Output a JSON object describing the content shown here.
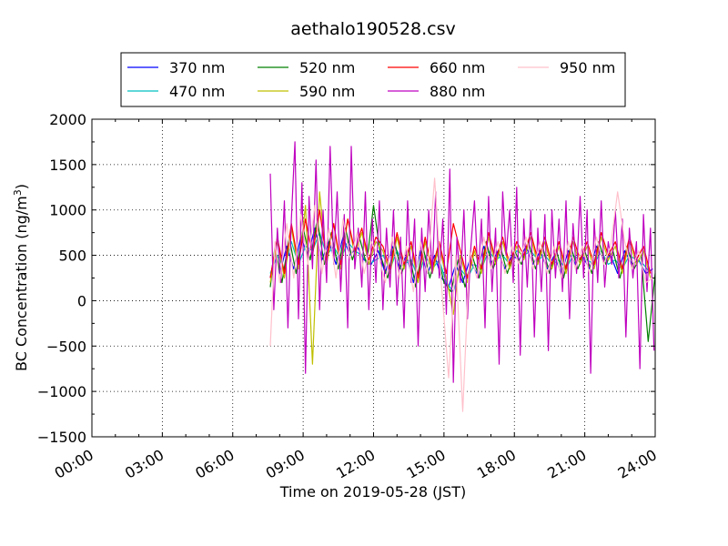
{
  "chart_data": {
    "type": "line",
    "title": "aethalo190528.csv",
    "xlabel": "Time on 2019-05-28 (JST)",
    "ylabel_main": "BC Concentration (ng/m",
    "ylabel_sup": "3",
    "ylabel_end": ")",
    "ylim": [
      -1500,
      2000
    ],
    "yticks": [
      -1500,
      -1000,
      -500,
      0,
      500,
      1000,
      1500,
      2000
    ],
    "ytick_labels": [
      "−1500",
      "−1000",
      "−500",
      "0",
      "500",
      "1000",
      "1500",
      "2000"
    ],
    "xlim_hours": [
      0,
      24
    ],
    "xticks_hours": [
      0,
      3,
      6,
      9,
      12,
      15,
      18,
      21,
      24
    ],
    "xtick_labels": [
      "00:00",
      "03:00",
      "06:00",
      "09:00",
      "12:00",
      "15:00",
      "18:00",
      "21:00",
      "24:00"
    ],
    "grid": true,
    "legend_position": "top",
    "series": [
      {
        "name": "370 nm",
        "color": "#0000ff",
        "x_hours": [
          7.6,
          7.8,
          8.0,
          8.3,
          8.6,
          8.9,
          9.2,
          9.5,
          9.8,
          10.1,
          10.4,
          10.7,
          11.0,
          11.3,
          11.6,
          11.9,
          12.2,
          12.5,
          12.8,
          13.1,
          13.4,
          13.7,
          14.0,
          14.3,
          14.6,
          14.9,
          15.2,
          15.5,
          15.8,
          16.1,
          16.4,
          16.7,
          17.0,
          17.3,
          17.6,
          17.9,
          18.2,
          18.5,
          18.8,
          19.1,
          19.4,
          19.7,
          20.0,
          20.3,
          20.6,
          20.9,
          21.2,
          21.5,
          21.8,
          22.1,
          22.4,
          22.7,
          23.0,
          23.3,
          23.6,
          23.9
        ],
        "values": [
          250,
          550,
          300,
          600,
          350,
          700,
          500,
          800,
          450,
          650,
          400,
          700,
          500,
          600,
          450,
          400,
          550,
          300,
          600,
          350,
          500,
          200,
          550,
          300,
          500,
          250,
          150,
          400,
          200,
          450,
          300,
          600,
          400,
          550,
          350,
          500,
          450,
          600,
          400,
          550,
          350,
          500,
          300,
          550,
          400,
          500,
          350,
          600,
          450,
          500,
          300,
          550,
          400,
          450,
          300,
          350
        ]
      },
      {
        "name": "470 nm",
        "color": "#00bfbf",
        "x_hours": [
          7.6,
          7.9,
          8.2,
          8.5,
          8.8,
          9.1,
          9.4,
          9.7,
          10.0,
          10.3,
          10.6,
          10.9,
          11.2,
          11.5,
          11.8,
          12.1,
          12.4,
          12.7,
          13.0,
          13.3,
          13.6,
          13.9,
          14.2,
          14.5,
          14.8,
          15.1,
          15.4,
          15.7,
          16.0,
          16.3,
          16.6,
          16.9,
          17.2,
          17.5,
          17.8,
          18.1,
          18.4,
          18.7,
          19.0,
          19.3,
          19.6,
          19.9,
          20.2,
          20.5,
          20.8,
          21.1,
          21.4,
          21.7,
          22.0,
          22.3,
          22.6,
          22.9,
          23.2,
          23.5,
          23.8
        ],
        "values": [
          300,
          500,
          350,
          650,
          400,
          600,
          550,
          750,
          500,
          600,
          450,
          650,
          550,
          500,
          400,
          450,
          500,
          350,
          550,
          400,
          450,
          250,
          500,
          350,
          450,
          200,
          100,
          350,
          250,
          400,
          350,
          550,
          450,
          500,
          400,
          550,
          500,
          550,
          450,
          500,
          400,
          450,
          350,
          500,
          450,
          450,
          400,
          550,
          400,
          450,
          350,
          500,
          450,
          400,
          300
        ]
      },
      {
        "name": "520 nm",
        "color": "#008000",
        "x_hours": [
          7.6,
          7.8,
          8.1,
          8.4,
          8.7,
          9.0,
          9.3,
          9.6,
          9.9,
          10.2,
          10.5,
          10.8,
          11.1,
          11.4,
          11.7,
          12.0,
          12.3,
          12.6,
          12.9,
          13.2,
          13.5,
          13.8,
          14.1,
          14.4,
          14.7,
          15.0,
          15.3,
          15.6,
          15.9,
          16.2,
          16.5,
          16.8,
          17.1,
          17.4,
          17.7,
          18.0,
          18.3,
          18.6,
          18.9,
          19.2,
          19.5,
          19.8,
          20.1,
          20.4,
          20.7,
          21.0,
          21.3,
          21.6,
          21.9,
          22.2,
          22.5,
          22.8,
          23.1,
          23.4,
          23.7,
          24.0
        ],
        "values": [
          150,
          600,
          200,
          700,
          300,
          800,
          450,
          900,
          400,
          750,
          350,
          800,
          450,
          700,
          400,
          1050,
          500,
          250,
          650,
          300,
          550,
          150,
          600,
          250,
          550,
          200,
          100,
          450,
          150,
          500,
          250,
          650,
          350,
          600,
          300,
          550,
          400,
          650,
          350,
          600,
          300,
          550,
          250,
          600,
          350,
          550,
          300,
          650,
          400,
          550,
          250,
          600,
          350,
          500,
          -450,
          300
        ]
      },
      {
        "name": "590 nm",
        "color": "#bfbf00",
        "x_hours": [
          7.6,
          7.9,
          8.2,
          8.5,
          8.8,
          9.1,
          9.4,
          9.7,
          10.0,
          10.3,
          10.6,
          10.9,
          11.2,
          11.5,
          11.8,
          12.1,
          12.4,
          12.7,
          13.0,
          13.3,
          13.6,
          13.9,
          14.2,
          14.5,
          14.8,
          15.1,
          15.4,
          15.7,
          16.0,
          16.3,
          16.6,
          16.9,
          17.2,
          17.5,
          17.8,
          18.1,
          18.4,
          18.7,
          19.0,
          19.3,
          19.6,
          19.9,
          20.2,
          20.5,
          20.8,
          21.1,
          21.4,
          21.7,
          22.0,
          22.3,
          22.6,
          22.9,
          23.2,
          23.5,
          23.8
        ],
        "values": [
          200,
          650,
          250,
          800,
          350,
          1050,
          -700,
          1200,
          400,
          850,
          350,
          900,
          500,
          750,
          400,
          650,
          550,
          300,
          700,
          350,
          600,
          200,
          650,
          300,
          600,
          250,
          -150,
          500,
          200,
          550,
          300,
          700,
          400,
          650,
          350,
          600,
          450,
          700,
          400,
          650,
          350,
          600,
          300,
          650,
          400,
          600,
          350,
          700,
          450,
          600,
          300,
          650,
          400,
          550,
          250
        ]
      },
      {
        "name": "660 nm",
        "color": "#ff0000",
        "x_hours": [
          7.6,
          7.9,
          8.2,
          8.5,
          8.8,
          9.1,
          9.4,
          9.7,
          10.0,
          10.3,
          10.6,
          10.9,
          11.2,
          11.5,
          11.8,
          12.1,
          12.4,
          12.7,
          13.0,
          13.3,
          13.6,
          13.9,
          14.2,
          14.5,
          14.8,
          15.1,
          15.4,
          15.7,
          16.0,
          16.3,
          16.6,
          16.9,
          17.2,
          17.5,
          17.8,
          18.1,
          18.4,
          18.7,
          19.0,
          19.3,
          19.6,
          19.9,
          20.2,
          20.5,
          20.8,
          21.1,
          21.4,
          21.7,
          22.0,
          22.3,
          22.6,
          22.9,
          23.2,
          23.5,
          23.8
        ],
        "values": [
          250,
          700,
          300,
          850,
          400,
          900,
          500,
          1000,
          450,
          850,
          400,
          900,
          550,
          800,
          450,
          700,
          600,
          350,
          750,
          400,
          650,
          250,
          700,
          350,
          650,
          300,
          850,
          550,
          250,
          600,
          350,
          750,
          450,
          700,
          400,
          650,
          500,
          750,
          450,
          700,
          400,
          650,
          350,
          700,
          450,
          650,
          400,
          750,
          500,
          650,
          350,
          700,
          450,
          600,
          300
        ]
      },
      {
        "name": "880 nm",
        "color": "#bf00bf",
        "x_hours": [
          7.6,
          7.75,
          7.9,
          8.05,
          8.2,
          8.35,
          8.5,
          8.65,
          8.8,
          8.95,
          9.1,
          9.25,
          9.4,
          9.55,
          9.7,
          9.85,
          10.0,
          10.15,
          10.3,
          10.45,
          10.6,
          10.75,
          10.9,
          11.05,
          11.2,
          11.35,
          11.5,
          11.65,
          11.8,
          11.95,
          12.1,
          12.25,
          12.4,
          12.55,
          12.7,
          12.85,
          13.0,
          13.15,
          13.3,
          13.45,
          13.6,
          13.75,
          13.9,
          14.05,
          14.2,
          14.35,
          14.5,
          14.65,
          14.8,
          14.95,
          15.1,
          15.25,
          15.4,
          15.55,
          15.7,
          15.85,
          16.0,
          16.15,
          16.3,
          16.45,
          16.6,
          16.75,
          16.9,
          17.05,
          17.2,
          17.35,
          17.5,
          17.65,
          17.8,
          17.95,
          18.1,
          18.25,
          18.4,
          18.55,
          18.7,
          18.85,
          19.0,
          19.15,
          19.3,
          19.45,
          19.6,
          19.75,
          19.9,
          20.05,
          20.2,
          20.35,
          20.5,
          20.65,
          20.8,
          20.95,
          21.1,
          21.25,
          21.4,
          21.55,
          21.7,
          21.85,
          22.0,
          22.15,
          22.3,
          22.45,
          22.6,
          22.75,
          22.9,
          23.05,
          23.2,
          23.35,
          23.5,
          23.65,
          23.8,
          23.95
        ],
        "values": [
          1400,
          -100,
          800,
          200,
          1100,
          -300,
          900,
          1750,
          -200,
          1300,
          -800,
          1150,
          350,
          1550,
          -100,
          1000,
          200,
          1700,
          400,
          1200,
          100,
          950,
          -300,
          1700,
          350,
          800,
          150,
          1200,
          -100,
          900,
          200,
          1100,
          -100,
          800,
          150,
          1000,
          -50,
          700,
          -300,
          1100,
          200,
          900,
          -500,
          800,
          100,
          1000,
          300,
          1200,
          250,
          900,
          -150,
          1450,
          -900,
          700,
          200,
          1000,
          -200,
          600,
          1100,
          250,
          900,
          -300,
          1150,
          100,
          800,
          -700,
          1200,
          500,
          1000,
          200,
          1250,
          -600,
          900,
          150,
          1000,
          -400,
          800,
          100,
          950,
          -550,
          1000,
          250,
          900,
          100,
          1100,
          -200,
          850,
          300,
          1150,
          250,
          1000,
          -800,
          900,
          200,
          1100,
          150,
          650,
          400,
          1000,
          250,
          900,
          -400,
          800,
          250,
          650,
          -750,
          950,
          100,
          800,
          -550
        ]
      },
      {
        "name": "950 nm",
        "color": "#ffc0cb",
        "x_hours": [
          7.6,
          7.8,
          8.0,
          8.3,
          8.6,
          8.9,
          9.2,
          9.5,
          9.8,
          10.1,
          10.4,
          10.7,
          11.0,
          11.3,
          11.6,
          11.9,
          12.2,
          12.5,
          12.8,
          13.1,
          13.4,
          13.7,
          14.0,
          14.3,
          14.6,
          14.9,
          15.2,
          15.5,
          15.8,
          16.1,
          16.4,
          16.7,
          17.0,
          17.3,
          17.6,
          17.9,
          18.2,
          18.5,
          18.8,
          19.1,
          19.4,
          19.7,
          20.0,
          20.3,
          20.6,
          20.9,
          21.2,
          21.5,
          21.8,
          22.1,
          22.4,
          22.7,
          23.0,
          23.3,
          23.6,
          23.9
        ],
        "values": [
          -500,
          650,
          200,
          850,
          250,
          950,
          400,
          1050,
          300,
          800,
          250,
          900,
          450,
          750,
          300,
          650,
          500,
          200,
          700,
          250,
          600,
          100,
          650,
          300,
          1350,
          150,
          -850,
          500,
          -1220,
          550,
          250,
          700,
          350,
          650,
          300,
          600,
          400,
          700,
          350,
          650,
          300,
          600,
          250,
          650,
          350,
          600,
          300,
          700,
          400,
          600,
          1200,
          650,
          350,
          550,
          200,
          250
        ]
      }
    ]
  }
}
